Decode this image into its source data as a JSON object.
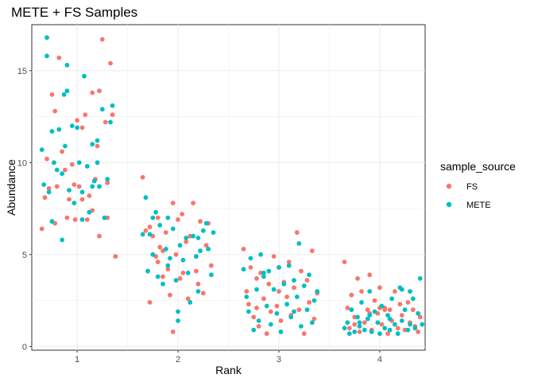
{
  "chart_data": {
    "type": "scatter",
    "title": "METE + FS Samples",
    "xlabel": "Rank",
    "ylabel": "Abundance",
    "xlim": [
      0.55,
      4.45
    ],
    "ylim": [
      -0.2,
      17.5
    ],
    "x_ticks": [
      1,
      2,
      3,
      4
    ],
    "y_ticks": [
      0,
      5,
      10,
      15
    ],
    "grid": true,
    "legend_position": "right",
    "legend_title": "sample_source",
    "series": [
      {
        "name": "FS",
        "color": "#F8766D",
        "points": [
          [
            0.65,
            6.4
          ],
          [
            0.68,
            8.1
          ],
          [
            0.7,
            10.2
          ],
          [
            0.72,
            8.6
          ],
          [
            0.75,
            13.7
          ],
          [
            0.78,
            6.7
          ],
          [
            0.8,
            8.7
          ],
          [
            0.82,
            15.7
          ],
          [
            0.85,
            10.6
          ],
          [
            0.88,
            9.6
          ],
          [
            0.9,
            7.0
          ],
          [
            0.92,
            8.0
          ],
          [
            0.95,
            9.9
          ],
          [
            0.98,
            6.9
          ],
          [
            1.0,
            12.3
          ],
          [
            1.02,
            8.7
          ],
          [
            1.05,
            11.9
          ],
          [
            1.08,
            12.6
          ],
          [
            1.1,
            6.9
          ],
          [
            1.12,
            8.2
          ],
          [
            1.15,
            13.8
          ],
          [
            1.18,
            9.1
          ],
          [
            1.2,
            10.9
          ],
          [
            1.22,
            6.0
          ],
          [
            1.25,
            16.7
          ],
          [
            1.28,
            12.2
          ],
          [
            1.3,
            8.9
          ],
          [
            1.33,
            15.4
          ],
          [
            1.35,
            12.6
          ],
          [
            1.38,
            4.9
          ],
          [
            1.05,
            8.0
          ],
          [
            1.15,
            7.4
          ],
          [
            0.78,
            12.8
          ],
          [
            1.22,
            13.9
          ],
          [
            0.97,
            8.8
          ],
          [
            1.3,
            7.0
          ],
          [
            1.65,
            9.2
          ],
          [
            1.68,
            6.3
          ],
          [
            1.7,
            4.1
          ],
          [
            1.72,
            2.4
          ],
          [
            1.75,
            6.0
          ],
          [
            1.78,
            4.9
          ],
          [
            1.8,
            7.0
          ],
          [
            1.82,
            5.4
          ],
          [
            1.85,
            3.8
          ],
          [
            1.88,
            6.2
          ],
          [
            1.9,
            4.2
          ],
          [
            1.92,
            2.8
          ],
          [
            1.95,
            7.8
          ],
          [
            1.98,
            5.0
          ],
          [
            2.0,
            6.9
          ],
          [
            2.02,
            3.7
          ],
          [
            2.05,
            4.0
          ],
          [
            2.08,
            5.7
          ],
          [
            2.1,
            2.6
          ],
          [
            2.12,
            6.0
          ],
          [
            2.15,
            7.8
          ],
          [
            2.18,
            4.9
          ],
          [
            2.2,
            3.4
          ],
          [
            2.22,
            6.8
          ],
          [
            2.25,
            2.9
          ],
          [
            2.28,
            5.5
          ],
          [
            2.3,
            6.7
          ],
          [
            2.33,
            4.4
          ],
          [
            1.85,
            5.2
          ],
          [
            1.72,
            6.5
          ],
          [
            2.18,
            4.1
          ],
          [
            1.95,
            0.8
          ],
          [
            2.04,
            7.2
          ],
          [
            1.8,
            4.6
          ],
          [
            2.65,
            5.3
          ],
          [
            2.68,
            3.0
          ],
          [
            2.7,
            2.3
          ],
          [
            2.72,
            4.3
          ],
          [
            2.75,
            1.6
          ],
          [
            2.78,
            3.7
          ],
          [
            2.8,
            1.1
          ],
          [
            2.82,
            4.0
          ],
          [
            2.85,
            2.6
          ],
          [
            2.88,
            0.7
          ],
          [
            2.9,
            3.4
          ],
          [
            2.92,
            1.9
          ],
          [
            2.95,
            4.9
          ],
          [
            2.98,
            2.2
          ],
          [
            3.0,
            4.3
          ],
          [
            3.02,
            1.4
          ],
          [
            3.05,
            3.5
          ],
          [
            3.08,
            2.7
          ],
          [
            3.1,
            4.6
          ],
          [
            3.12,
            1.7
          ],
          [
            3.15,
            3.2
          ],
          [
            3.18,
            6.2
          ],
          [
            3.2,
            2.0
          ],
          [
            3.22,
            4.1
          ],
          [
            3.25,
            0.7
          ],
          [
            3.28,
            3.6
          ],
          [
            3.3,
            2.4
          ],
          [
            3.33,
            5.2
          ],
          [
            3.35,
            1.5
          ],
          [
            3.38,
            2.9
          ],
          [
            3.0,
            3.0
          ],
          [
            2.78,
            2.1
          ],
          [
            3.65,
            4.6
          ],
          [
            3.68,
            2.1
          ],
          [
            3.7,
            1.0
          ],
          [
            3.72,
            2.8
          ],
          [
            3.75,
            1.6
          ],
          [
            3.78,
            3.7
          ],
          [
            3.8,
            0.8
          ],
          [
            3.82,
            3.0
          ],
          [
            3.85,
            1.3
          ],
          [
            3.88,
            2.0
          ],
          [
            3.9,
            3.9
          ],
          [
            3.92,
            0.9
          ],
          [
            3.95,
            2.5
          ],
          [
            3.98,
            1.8
          ],
          [
            4.0,
            3.2
          ],
          [
            4.02,
            1.2
          ],
          [
            4.05,
            2.1
          ],
          [
            4.08,
            0.7
          ],
          [
            4.1,
            2.0
          ],
          [
            4.12,
            1.4
          ],
          [
            4.15,
            3.0
          ],
          [
            4.18,
            1.0
          ],
          [
            4.2,
            2.3
          ],
          [
            4.22,
            1.7
          ],
          [
            4.25,
            0.9
          ],
          [
            4.28,
            2.4
          ],
          [
            4.3,
            1.3
          ],
          [
            4.33,
            2.0
          ],
          [
            4.35,
            1.1
          ],
          [
            4.38,
            0.8
          ],
          [
            4.4,
            1.6
          ],
          [
            3.9,
            1.8
          ],
          [
            4.05,
            2.0
          ],
          [
            3.75,
            1.2
          ],
          [
            4.0,
            2.1
          ]
        ]
      },
      {
        "name": "METE",
        "color": "#00BFC4",
        "points": [
          [
            0.65,
            10.7
          ],
          [
            0.67,
            8.8
          ],
          [
            0.7,
            15.8
          ],
          [
            0.72,
            8.4
          ],
          [
            0.75,
            11.7
          ],
          [
            0.77,
            10.0
          ],
          [
            0.8,
            9.6
          ],
          [
            0.82,
            11.8
          ],
          [
            0.85,
            9.4
          ],
          [
            0.87,
            13.7
          ],
          [
            0.9,
            15.3
          ],
          [
            0.92,
            8.5
          ],
          [
            0.95,
            12.0
          ],
          [
            0.97,
            7.8
          ],
          [
            1.0,
            11.9
          ],
          [
            1.02,
            10.0
          ],
          [
            1.05,
            8.4
          ],
          [
            1.07,
            14.7
          ],
          [
            1.1,
            9.8
          ],
          [
            1.12,
            7.3
          ],
          [
            1.15,
            11.0
          ],
          [
            1.17,
            9.0
          ],
          [
            1.2,
            11.2
          ],
          [
            1.22,
            8.7
          ],
          [
            1.25,
            12.9
          ],
          [
            1.27,
            7.0
          ],
          [
            1.3,
            9.1
          ],
          [
            1.33,
            12.2
          ],
          [
            1.35,
            13.1
          ],
          [
            0.7,
            16.8
          ],
          [
            0.85,
            5.8
          ],
          [
            1.05,
            6.9
          ],
          [
            0.75,
            6.8
          ],
          [
            0.9,
            13.9
          ],
          [
            0.88,
            10.9
          ],
          [
            1.15,
            8.7
          ],
          [
            1.2,
            10.0
          ],
          [
            1.65,
            6.1
          ],
          [
            1.68,
            8.1
          ],
          [
            1.7,
            4.1
          ],
          [
            1.72,
            6.1
          ],
          [
            1.75,
            5.0
          ],
          [
            1.78,
            7.3
          ],
          [
            1.8,
            3.8
          ],
          [
            1.82,
            6.6
          ],
          [
            1.85,
            3.4
          ],
          [
            1.88,
            5.3
          ],
          [
            1.9,
            7.0
          ],
          [
            1.92,
            4.8
          ],
          [
            1.95,
            6.4
          ],
          [
            1.98,
            3.6
          ],
          [
            2.0,
            1.9
          ],
          [
            2.02,
            5.5
          ],
          [
            2.05,
            4.7
          ],
          [
            2.08,
            5.9
          ],
          [
            2.1,
            4.0
          ],
          [
            2.12,
            2.4
          ],
          [
            2.15,
            6.0
          ],
          [
            2.18,
            4.9
          ],
          [
            2.2,
            3.0
          ],
          [
            2.22,
            5.2
          ],
          [
            2.25,
            6.3
          ],
          [
            2.28,
            6.7
          ],
          [
            2.3,
            5.3
          ],
          [
            2.33,
            3.9
          ],
          [
            2.35,
            6.2
          ],
          [
            2.0,
            1.4
          ],
          [
            1.75,
            7.0
          ],
          [
            2.2,
            5.9
          ],
          [
            1.9,
            4.4
          ],
          [
            2.65,
            4.2
          ],
          [
            2.68,
            2.7
          ],
          [
            2.7,
            1.9
          ],
          [
            2.72,
            4.8
          ],
          [
            2.75,
            0.9
          ],
          [
            2.78,
            3.1
          ],
          [
            2.8,
            1.4
          ],
          [
            2.82,
            5.0
          ],
          [
            2.85,
            3.8
          ],
          [
            2.88,
            2.2
          ],
          [
            2.9,
            4.1
          ],
          [
            2.92,
            1.2
          ],
          [
            2.95,
            3.1
          ],
          [
            2.98,
            1.8
          ],
          [
            3.0,
            4.3
          ],
          [
            3.02,
            0.8
          ],
          [
            3.05,
            3.4
          ],
          [
            3.08,
            2.3
          ],
          [
            3.1,
            4.4
          ],
          [
            3.12,
            1.6
          ],
          [
            3.15,
            3.6
          ],
          [
            3.18,
            2.7
          ],
          [
            3.2,
            5.6
          ],
          [
            3.22,
            1.1
          ],
          [
            3.25,
            3.3
          ],
          [
            3.28,
            2.0
          ],
          [
            3.3,
            3.9
          ],
          [
            3.33,
            1.3
          ],
          [
            3.35,
            2.5
          ],
          [
            3.38,
            3.0
          ],
          [
            2.85,
            4.0
          ],
          [
            3.15,
            1.9
          ],
          [
            3.65,
            1.0
          ],
          [
            3.68,
            1.3
          ],
          [
            3.7,
            0.7
          ],
          [
            3.72,
            2.0
          ],
          [
            3.75,
            0.8
          ],
          [
            3.78,
            1.6
          ],
          [
            3.8,
            1.1
          ],
          [
            3.82,
            2.4
          ],
          [
            3.85,
            0.9
          ],
          [
            3.88,
            1.5
          ],
          [
            3.9,
            3.0
          ],
          [
            3.92,
            0.8
          ],
          [
            3.95,
            1.9
          ],
          [
            3.98,
            1.3
          ],
          [
            4.0,
            0.7
          ],
          [
            4.02,
            2.2
          ],
          [
            4.05,
            1.0
          ],
          [
            4.08,
            1.7
          ],
          [
            4.1,
            0.9
          ],
          [
            4.12,
            2.6
          ],
          [
            4.15,
            1.2
          ],
          [
            4.18,
            0.7
          ],
          [
            4.2,
            3.2
          ],
          [
            4.22,
            1.4
          ],
          [
            4.25,
            2.0
          ],
          [
            4.28,
            0.9
          ],
          [
            4.3,
            1.2
          ],
          [
            4.33,
            2.6
          ],
          [
            4.35,
            1.0
          ],
          [
            4.38,
            1.8
          ],
          [
            4.4,
            3.7
          ],
          [
            4.42,
            1.2
          ],
          [
            3.8,
            1.3
          ],
          [
            4.1,
            1.5
          ],
          [
            4.3,
            3.0
          ],
          [
            3.9,
            1.7
          ],
          [
            4.22,
            3.1
          ]
        ]
      }
    ]
  }
}
